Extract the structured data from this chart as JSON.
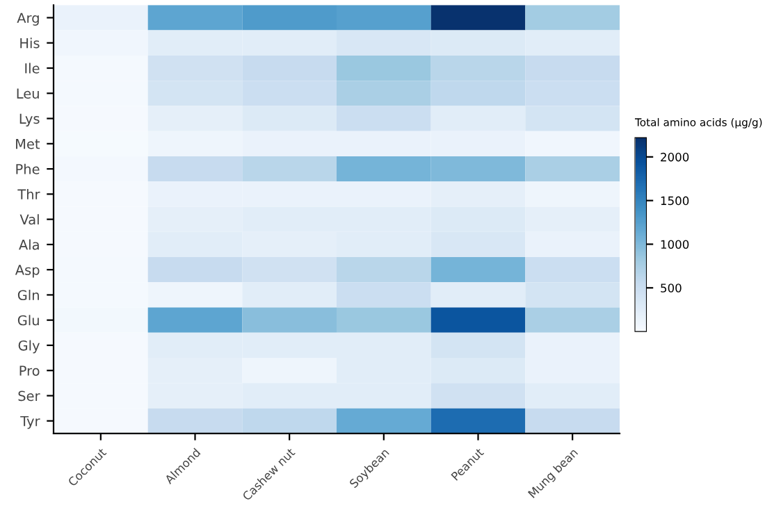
{
  "chart_data": {
    "type": "heatmap",
    "clabel": "Total amino acids (μg/g)",
    "categories": [
      "Coconut",
      "Almond",
      "Cashew nut",
      "Soybean",
      "Peanut",
      "Mung bean"
    ],
    "y_categories": [
      "Arg",
      "His",
      "Ile",
      "Leu",
      "Lys",
      "Met",
      "Phe",
      "Thr",
      "Val",
      "Ala",
      "Asp",
      "Gln",
      "Glu",
      "Gly",
      "Pro",
      "Ser",
      "Tyr"
    ],
    "cells": [
      [
        150,
        1200,
        1300,
        1250,
        2200,
        800
      ],
      [
        80,
        250,
        250,
        350,
        300,
        250
      ],
      [
        40,
        450,
        550,
        850,
        650,
        550
      ],
      [
        40,
        400,
        500,
        750,
        600,
        500
      ],
      [
        30,
        200,
        300,
        500,
        250,
        400
      ],
      [
        20,
        100,
        150,
        150,
        150,
        80
      ],
      [
        50,
        550,
        650,
        1050,
        1000,
        750
      ],
      [
        30,
        150,
        150,
        150,
        200,
        100
      ],
      [
        30,
        200,
        250,
        250,
        300,
        200
      ],
      [
        30,
        250,
        200,
        250,
        350,
        150
      ],
      [
        40,
        550,
        450,
        650,
        1050,
        500
      ],
      [
        40,
        100,
        250,
        500,
        250,
        400
      ],
      [
        60,
        1200,
        950,
        850,
        1900,
        750
      ],
      [
        30,
        250,
        250,
        250,
        400,
        150
      ],
      [
        30,
        200,
        100,
        250,
        300,
        150
      ],
      [
        30,
        200,
        250,
        250,
        450,
        250
      ],
      [
        30,
        550,
        600,
        1150,
        1700,
        550
      ]
    ],
    "clim": [
      0,
      2220
    ],
    "cticks": [
      500,
      1000,
      1500,
      2000
    ]
  }
}
